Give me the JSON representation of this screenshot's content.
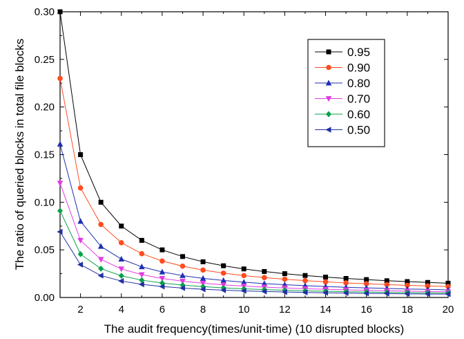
{
  "chart_data": {
    "type": "line",
    "xlabel": "The audit frequency(times/unit-time) (10 disrupted blocks)",
    "ylabel": "The ratio of queried blocks in total file blocks",
    "xlim": [
      1,
      20
    ],
    "ylim": [
      0,
      0.3
    ],
    "x_ticks": [
      2,
      4,
      6,
      8,
      10,
      12,
      14,
      16,
      18,
      20
    ],
    "y_ticks": [
      "0.00",
      "0.05",
      "0.10",
      "0.15",
      "0.20",
      "0.25",
      "0.30"
    ],
    "legend_position": "top-right",
    "grid": false,
    "x": [
      1,
      2,
      3,
      4,
      5,
      6,
      7,
      8,
      9,
      10,
      11,
      12,
      13,
      14,
      15,
      16,
      17,
      18,
      19,
      20
    ],
    "series": [
      {
        "name": "0.95",
        "color": "#000000",
        "marker": "square",
        "values": [
          0.3,
          0.15,
          0.1,
          0.075,
          0.06,
          0.05,
          0.043,
          0.0375,
          0.0333,
          0.03,
          0.0273,
          0.025,
          0.0231,
          0.0214,
          0.02,
          0.0188,
          0.0176,
          0.0167,
          0.0158,
          0.015
        ]
      },
      {
        "name": "0.90",
        "color": "#ff4c1f",
        "marker": "circle",
        "values": [
          0.23,
          0.115,
          0.0767,
          0.0575,
          0.046,
          0.0383,
          0.0329,
          0.0288,
          0.0256,
          0.023,
          0.0209,
          0.0192,
          0.0177,
          0.0164,
          0.0153,
          0.0144,
          0.0135,
          0.0128,
          0.0121,
          0.0115
        ]
      },
      {
        "name": "0.80",
        "color": "#1f2fb0",
        "marker": "triangle-up",
        "values": [
          0.161,
          0.08,
          0.0537,
          0.0403,
          0.0322,
          0.0268,
          0.023,
          0.0201,
          0.0179,
          0.0161,
          0.0146,
          0.0134,
          0.0124,
          0.0115,
          0.0107,
          0.0101,
          0.0095,
          0.0089,
          0.0085,
          0.008
        ]
      },
      {
        "name": "0.70",
        "color": "#e03ce0",
        "marker": "triangle-down",
        "values": [
          0.12,
          0.06,
          0.04,
          0.03,
          0.024,
          0.02,
          0.0171,
          0.015,
          0.0133,
          0.012,
          0.0109,
          0.01,
          0.0092,
          0.0086,
          0.008,
          0.0075,
          0.0071,
          0.0067,
          0.0063,
          0.006
        ]
      },
      {
        "name": "0.60",
        "color": "#0aa04a",
        "marker": "diamond",
        "values": [
          0.091,
          0.0455,
          0.0303,
          0.0228,
          0.0182,
          0.0152,
          0.013,
          0.0114,
          0.0101,
          0.0091,
          0.0083,
          0.0076,
          0.007,
          0.0065,
          0.0061,
          0.0057,
          0.0054,
          0.0051,
          0.0048,
          0.0046
        ]
      },
      {
        "name": "0.50",
        "color": "#2030a0",
        "marker": "triangle-left",
        "values": [
          0.069,
          0.0345,
          0.023,
          0.0173,
          0.0138,
          0.0115,
          0.0099,
          0.0086,
          0.0077,
          0.0069,
          0.0063,
          0.0058,
          0.0053,
          0.0049,
          0.0046,
          0.0043,
          0.0041,
          0.0038,
          0.0036,
          0.0035
        ]
      }
    ]
  }
}
